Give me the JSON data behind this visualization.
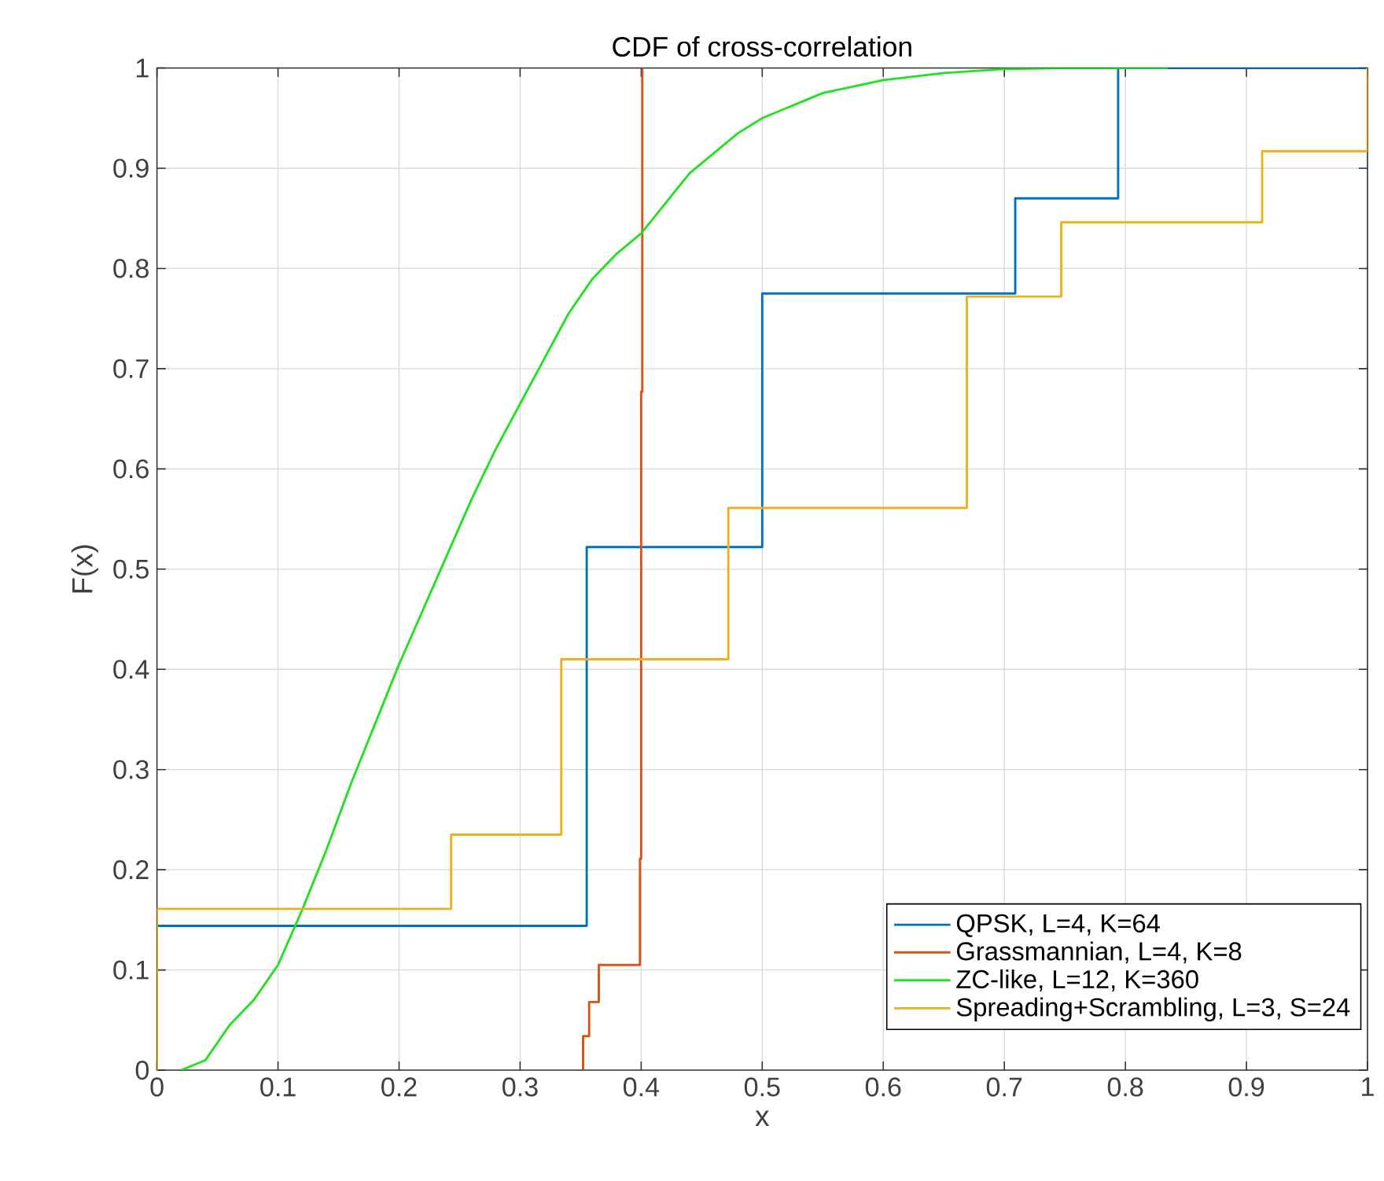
{
  "chart_data": {
    "type": "step",
    "title": "CDF of cross-correlation",
    "xlabel": "x",
    "ylabel": "F(x)",
    "xlim": [
      0,
      1
    ],
    "ylim": [
      0,
      1
    ],
    "xticks": [
      0,
      0.1,
      0.2,
      0.3,
      0.4,
      0.5,
      0.6,
      0.7,
      0.8,
      0.9,
      1
    ],
    "yticks": [
      0,
      0.1,
      0.2,
      0.3,
      0.4,
      0.5,
      0.6,
      0.7,
      0.8,
      0.9,
      1
    ],
    "grid": true,
    "legend": "bottom right",
    "line_style": "solid",
    "series": [
      {
        "name": "QPSK, L=4, K=64",
        "color": "#0072bd",
        "x": [
          0,
          0.355,
          0.5,
          0.709,
          0.794,
          1
        ],
        "values": [
          0.144,
          0.522,
          0.775,
          0.87,
          1,
          1
        ]
      },
      {
        "name": "Grassmannian, L=4, K=8",
        "color": "#d95319",
        "x": [
          0.352,
          0.352,
          0.357,
          0.365,
          0.399,
          0.4,
          0.401,
          0.401
        ],
        "values": [
          0,
          0.034,
          0.068,
          0.105,
          0.211,
          0.677,
          1,
          1
        ]
      },
      {
        "name": "ZC-like, L=12, K=360",
        "color": "#22e022",
        "type": "line",
        "x": [
          0.02,
          0.04,
          0.06,
          0.08,
          0.1,
          0.12,
          0.14,
          0.16,
          0.18,
          0.2,
          0.22,
          0.24,
          0.26,
          0.28,
          0.3,
          0.32,
          0.34,
          0.36,
          0.38,
          0.4,
          0.42,
          0.44,
          0.46,
          0.48,
          0.5,
          0.52,
          0.55,
          0.6,
          0.65,
          0.7,
          0.75,
          0.835
        ],
        "values": [
          0,
          0.01,
          0.045,
          0.07,
          0.105,
          0.16,
          0.22,
          0.285,
          0.345,
          0.405,
          0.46,
          0.515,
          0.57,
          0.62,
          0.665,
          0.71,
          0.755,
          0.79,
          0.815,
          0.835,
          0.865,
          0.895,
          0.915,
          0.935,
          0.95,
          0.96,
          0.975,
          0.988,
          0.995,
          0.999,
          1,
          1
        ]
      },
      {
        "name": "Spreading+Scrambling, L=3, S=24",
        "color": "#edb120",
        "x": [
          0,
          0,
          0.243,
          0.334,
          0.472,
          0.669,
          0.747,
          0.913,
          1,
          1
        ],
        "values": [
          0,
          0.161,
          0.235,
          0.41,
          0.561,
          0.772,
          0.846,
          0.917,
          1,
          1
        ]
      }
    ]
  }
}
